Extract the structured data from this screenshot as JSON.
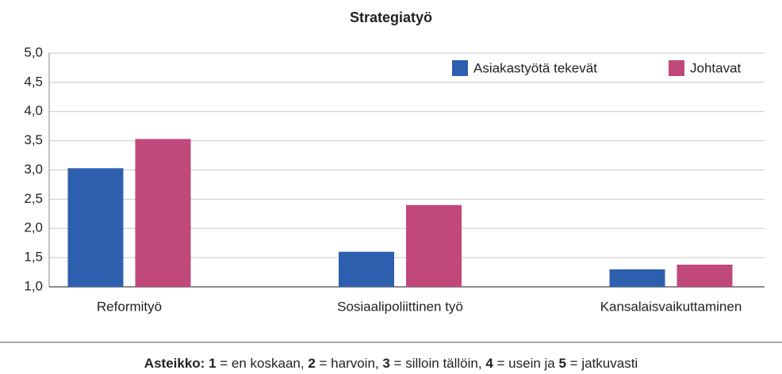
{
  "chart_data": {
    "type": "bar",
    "title": "Strategiatyö",
    "categories": [
      "Reformityö",
      "Sosiaalipoliittinen työ",
      "Kansalaisvaikuttaminen"
    ],
    "series": [
      {
        "name": "Asiakastyötä tekevät",
        "color": "#2e5fae",
        "values": [
          3.03,
          1.6,
          1.3
        ]
      },
      {
        "name": "Johtavat",
        "color": "#c0487b",
        "values": [
          3.53,
          2.4,
          1.38
        ]
      }
    ],
    "ylim": [
      1,
      5
    ],
    "yticks": [
      {
        "value": 1,
        "label": "1,0"
      },
      {
        "value": 1.5,
        "label": "1,5"
      },
      {
        "value": 2,
        "label": "2,0"
      },
      {
        "value": 2.5,
        "label": "2,5"
      },
      {
        "value": 3,
        "label": "3,0"
      },
      {
        "value": 3.5,
        "label": "3,5"
      },
      {
        "value": 4,
        "label": "4,0"
      },
      {
        "value": 4.5,
        "label": "4,5"
      },
      {
        "value": 5,
        "label": "5,0"
      }
    ],
    "grid": true,
    "legend": "upper right"
  },
  "note": [
    {
      "text": "Asteikko:",
      "bold": true
    },
    {
      "text": " "
    },
    {
      "text": "1",
      "bold": true
    },
    {
      "text": " = en koskaan, "
    },
    {
      "text": "2",
      "bold": true
    },
    {
      "text": " = harvoin, "
    },
    {
      "text": "3",
      "bold": true
    },
    {
      "text": " = silloin tällöin, "
    },
    {
      "text": "4",
      "bold": true
    },
    {
      "text": " = usein ja "
    },
    {
      "text": "5",
      "bold": true
    },
    {
      "text": " = jatkuvasti"
    }
  ]
}
